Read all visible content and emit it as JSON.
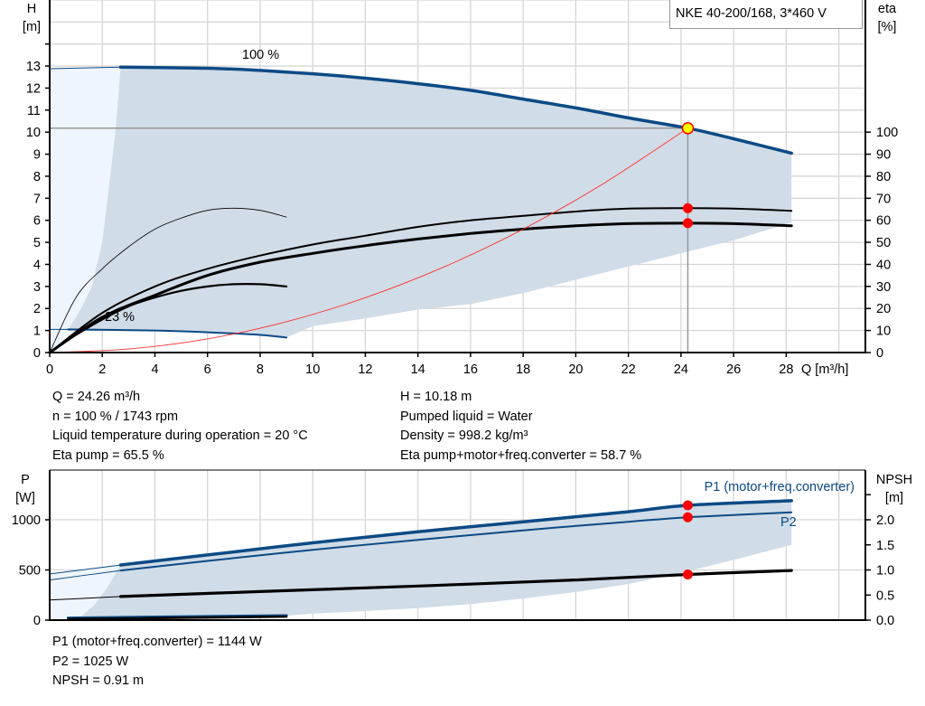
{
  "legend_title": "NKE 40-200/168, 3*460 V",
  "colors": {
    "head_curve": "#0b4a85",
    "eta_curve": "#000000",
    "system_curve": "#ff3030",
    "area": "#d0dce7",
    "area_light": "#eef5fc",
    "point": "#ff0000",
    "duty_point": "#ffff00"
  },
  "top_info": {
    "left": [
      "Q = 24.26 m³/h",
      "n = 100 % / 1743 rpm",
      "Liquid temperature during operation = 20 °C",
      "Eta pump = 65.5 %"
    ],
    "right": [
      "H = 10.18 m",
      "Pumped liquid = Water",
      "Density = 998.2 kg/m³",
      "Eta pump+motor+freq.converter = 58.7 %"
    ]
  },
  "bottom_info": [
    "P1 (motor+freq.converter) = 1144 W",
    "P2 = 1025 W",
    "NPSH = 0.91 m"
  ],
  "chart_data": [
    {
      "type": "line",
      "xlabel": "Q [m³/h]",
      "ylabel": [
        "H",
        "[m]"
      ],
      "y2label": [
        "eta",
        "[%]"
      ],
      "xlim": [
        0,
        31
      ],
      "ylim": [
        0,
        16
      ],
      "y2lim": [
        0,
        160
      ],
      "xticks": [
        "0",
        "2",
        "4",
        "6",
        "8",
        "10",
        "12",
        "14",
        "16",
        "18",
        "20",
        "22",
        "24",
        "26",
        "28"
      ],
      "yticks": [
        "0",
        "1",
        "2",
        "3",
        "4",
        "5",
        "6",
        "7",
        "8",
        "9",
        "10",
        "11",
        "12",
        "13"
      ],
      "y2ticks": [
        "0",
        "10",
        "20",
        "30",
        "40",
        "50",
        "60",
        "70",
        "80",
        "90",
        "100"
      ],
      "grid": true,
      "annotations": [
        "100 %",
        "23 %"
      ],
      "duty_point": {
        "Q": 24.26,
        "H": 10.18,
        "eta_pump": 65.5,
        "eta_total": 58.7
      },
      "series": [
        {
          "key": "head_100",
          "axis": "H",
          "x": [
            0,
            2.7,
            6,
            8,
            10,
            12,
            14,
            16,
            18,
            20,
            22,
            24.26,
            26,
            28.2
          ],
          "y": [
            12.88,
            12.95,
            12.9,
            12.8,
            12.65,
            12.45,
            12.2,
            11.9,
            11.5,
            11.1,
            10.65,
            10.18,
            9.7,
            9.05
          ]
        },
        {
          "key": "head_23",
          "axis": "H",
          "x": [
            0,
            0.7,
            4,
            6,
            8,
            9
          ],
          "y": [
            1.05,
            1.05,
            1.0,
            0.92,
            0.8,
            0.68
          ]
        },
        {
          "key": "eta_pump",
          "axis": "eta",
          "x": [
            0,
            2,
            4,
            6,
            8,
            10,
            12,
            14,
            16,
            18,
            20,
            22,
            24.26,
            26,
            28.2
          ],
          "y": [
            0,
            18,
            30,
            38,
            44,
            49,
            53,
            57,
            60,
            62,
            64,
            65.3,
            65.5,
            65.3,
            64.3
          ]
        },
        {
          "key": "eta_total",
          "axis": "eta",
          "x": [
            0,
            2,
            4,
            6,
            8,
            10,
            12,
            14,
            16,
            18,
            20,
            22,
            24.26,
            26,
            28.2
          ],
          "y": [
            0,
            16,
            26,
            35,
            41,
            45,
            48.5,
            51.5,
            54,
            56,
            57.5,
            58.5,
            58.7,
            58.5,
            57.5
          ]
        },
        {
          "key": "eta_pump_23",
          "axis": "eta",
          "x": [
            0,
            1,
            2,
            3,
            4,
            5,
            6,
            7,
            8,
            9
          ],
          "y": [
            0,
            25,
            38,
            48,
            56,
            61,
            64.5,
            65.5,
            64.5,
            61.5
          ]
        },
        {
          "key": "eta_total_23",
          "axis": "eta",
          "x": [
            0,
            1,
            2,
            3,
            4,
            5,
            6,
            7,
            8,
            9
          ],
          "y": [
            0,
            8,
            15,
            21,
            25,
            28,
            30,
            31,
            31,
            30
          ]
        },
        {
          "key": "system",
          "axis": "H",
          "x": [
            0,
            3,
            6,
            9,
            12,
            15,
            18,
            21,
            24.26
          ],
          "y": [
            0,
            0.16,
            0.62,
            1.4,
            2.49,
            3.89,
            5.6,
            7.63,
            10.18
          ]
        }
      ]
    },
    {
      "type": "line",
      "ylabel": [
        "P",
        "[W]"
      ],
      "y2label": [
        "NPSH",
        "[m]"
      ],
      "xlim": [
        0,
        31
      ],
      "ylim": [
        0,
        1500
      ],
      "y2lim": [
        0,
        3.0
      ],
      "yticks": [
        "0",
        "500",
        "1000"
      ],
      "y2ticks": [
        "0.0",
        "0.5",
        "1.0",
        "1.5",
        "2.0"
      ],
      "grid": true,
      "duty_point": {
        "Q": 24.26,
        "P1": 1144,
        "P2": 1025,
        "NPSH": 0.91
      },
      "series": [
        {
          "key": "P1",
          "name": "P1 (motor+freq.converter)",
          "axis": "P",
          "x": [
            0,
            2.7,
            6,
            10,
            14,
            18,
            22,
            24.26,
            28.2
          ],
          "y": [
            460,
            550,
            650,
            770,
            880,
            980,
            1080,
            1144,
            1190
          ]
        },
        {
          "key": "P2",
          "name": "P2",
          "axis": "P",
          "x": [
            0,
            2.7,
            6,
            10,
            14,
            18,
            22,
            24.26,
            28.2
          ],
          "y": [
            400,
            495,
            590,
            700,
            800,
            895,
            980,
            1025,
            1075
          ]
        },
        {
          "key": "NPSH",
          "axis": "NPSH",
          "x": [
            0,
            2.7,
            8,
            14,
            20,
            24.26,
            28.2
          ],
          "y": [
            0.4,
            0.47,
            0.57,
            0.68,
            0.8,
            0.91,
            0.99
          ]
        },
        {
          "key": "P1_23",
          "axis": "P",
          "x": [
            0.7,
            9
          ],
          "y": [
            22,
            45
          ]
        },
        {
          "key": "NPSH_23",
          "axis": "NPSH",
          "x": [
            0.7,
            9
          ],
          "y": [
            0.02,
            0.07
          ]
        }
      ]
    }
  ]
}
